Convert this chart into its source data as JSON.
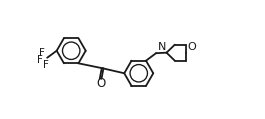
{
  "background_color": "#ffffff",
  "line_color": "#1a1a1a",
  "line_width": 1.3,
  "font_size": 7.5,
  "fig_width": 2.65,
  "fig_height": 1.19,
  "dpi": 100,
  "xlim": [
    0.0,
    10.5
  ],
  "ylim": [
    0.5,
    5.2
  ]
}
